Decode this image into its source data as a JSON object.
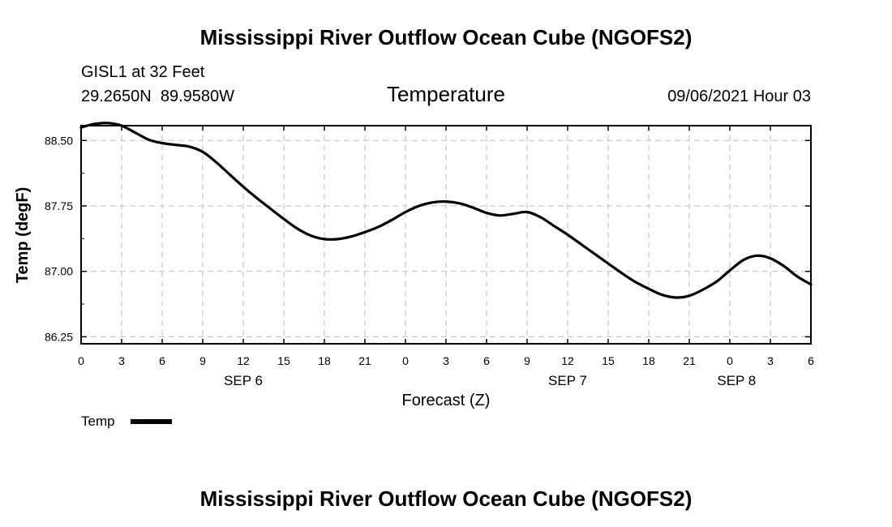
{
  "chart_data": {
    "type": "line",
    "title": "Mississippi River Outflow Ocean Cube (NGOFS2)",
    "footer_title": "Mississippi River Outflow Ocean Cube (NGOFS2)",
    "station_line": "GISL1 at 32 Feet",
    "coords_line": "29.2650N  89.9580W",
    "subtitle": "Temperature",
    "datetime": "09/06/2021 Hour 03",
    "xlabel": "Forecast (Z)",
    "ylabel": "Temp (degF)",
    "xlim": [
      0,
      54
    ],
    "ylim": [
      86.17,
      88.67
    ],
    "yticks": [
      86.25,
      87.0,
      87.75,
      88.5
    ],
    "ytick_labels": [
      "86.25",
      "87.00",
      "87.75",
      "88.50"
    ],
    "xticks": [
      0,
      3,
      6,
      9,
      12,
      15,
      18,
      21,
      24,
      27,
      30,
      33,
      36,
      39,
      42,
      45,
      48,
      51,
      54
    ],
    "xtick_labels": [
      "0",
      "3",
      "6",
      "9",
      "12",
      "15",
      "18",
      "21",
      "0",
      "3",
      "6",
      "9",
      "12",
      "15",
      "18",
      "21",
      "0",
      "3",
      "6"
    ],
    "date_labels": [
      {
        "x": 12,
        "label": "SEP 6"
      },
      {
        "x": 36,
        "label": "SEP 7"
      },
      {
        "x": 48.5,
        "label": "SEP 8"
      }
    ],
    "grid": true,
    "legend": "bottom-left",
    "series": [
      {
        "name": "Temp",
        "color": "#000000",
        "x": [
          0,
          1,
          2,
          3,
          4,
          5,
          6,
          7,
          8,
          9,
          10,
          11,
          12,
          13,
          14,
          15,
          16,
          17,
          18,
          19,
          20,
          21,
          22,
          23,
          24,
          25,
          26,
          27,
          28,
          29,
          30,
          31,
          32,
          33,
          34,
          35,
          36,
          37,
          38,
          39,
          40,
          41,
          42,
          43,
          44,
          45,
          46,
          47,
          48,
          49,
          50,
          51,
          52,
          53,
          54
        ],
        "values": [
          88.65,
          88.69,
          88.7,
          88.67,
          88.59,
          88.51,
          88.47,
          88.45,
          88.43,
          88.37,
          88.25,
          88.11,
          87.97,
          87.84,
          87.72,
          87.6,
          87.49,
          87.41,
          87.37,
          87.37,
          87.4,
          87.45,
          87.51,
          87.59,
          87.68,
          87.75,
          87.79,
          87.8,
          87.78,
          87.73,
          87.67,
          87.64,
          87.66,
          87.68,
          87.62,
          87.52,
          87.42,
          87.31,
          87.2,
          87.09,
          86.98,
          86.88,
          86.8,
          86.73,
          86.7,
          86.72,
          86.79,
          86.88,
          87.01,
          87.13,
          87.18,
          87.15,
          87.06,
          86.94,
          86.85
        ]
      }
    ]
  }
}
